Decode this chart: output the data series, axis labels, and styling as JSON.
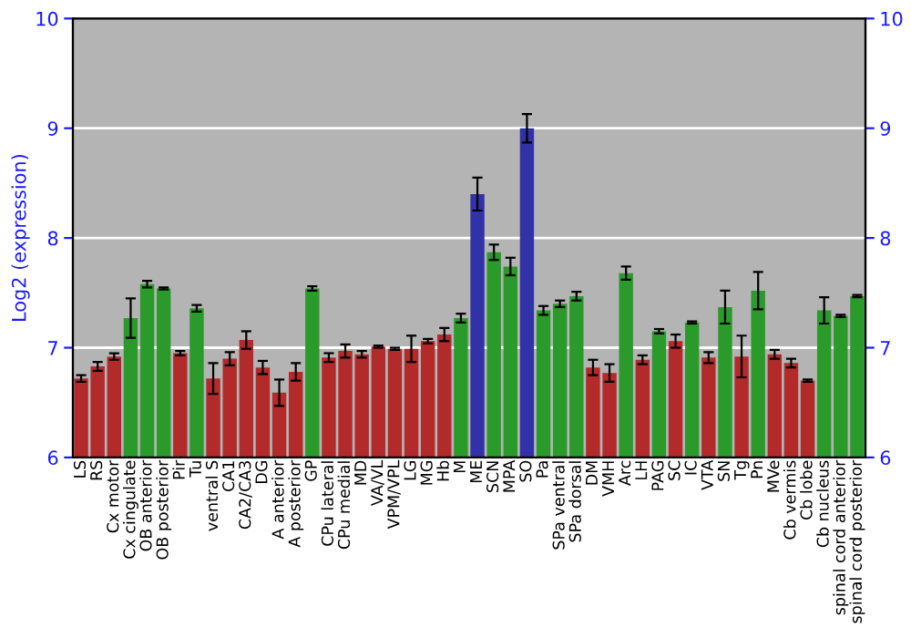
{
  "chart_data": {
    "type": "bar",
    "ylabel": "Log2 (expression)",
    "categories": [
      "LS",
      "RS",
      "Cx motor",
      "Cx cingulate",
      "OB anterior",
      "OB posterior",
      "Pir",
      "Tu",
      "ventral S",
      "CA1",
      "CA2/CA3",
      "DG",
      "A anterior",
      "A posterior",
      "GP",
      "CPu lateral",
      "CPu medial",
      "MD",
      "VA/VL",
      "VPM/VPL",
      "LG",
      "MG",
      "Hb",
      "M",
      "ME",
      "SCN",
      "MPA",
      "SO",
      "Pa",
      "SPa ventral",
      "SPa dorsal",
      "DM",
      "VMH",
      "Arc",
      "LH",
      "PAG",
      "SC",
      "IC",
      "VTA",
      "SN",
      "Tg",
      "Pn",
      "MVe",
      "Cb vermis",
      "Cb lobe",
      "Cb nucleus",
      "spinal cord anterior",
      "spinal cord posterior"
    ],
    "values": [
      6.72,
      6.83,
      6.92,
      7.27,
      7.58,
      7.54,
      6.95,
      7.36,
      6.72,
      6.9,
      7.07,
      6.82,
      6.59,
      6.78,
      7.54,
      6.91,
      6.97,
      6.94,
      7.01,
      6.99,
      6.99,
      7.06,
      7.12,
      7.27,
      8.4,
      7.87,
      7.74,
      9.0,
      7.34,
      7.4,
      7.47,
      6.82,
      6.77,
      7.68,
      6.89,
      7.15,
      7.06,
      7.23,
      6.91,
      7.37,
      6.92,
      7.52,
      6.94,
      6.86,
      6.7,
      7.34,
      7.29,
      7.47
    ],
    "errors": [
      0.03,
      0.04,
      0.03,
      0.18,
      0.03,
      0.01,
      0.02,
      0.03,
      0.14,
      0.06,
      0.08,
      0.06,
      0.12,
      0.08,
      0.02,
      0.04,
      0.06,
      0.03,
      0.01,
      0.01,
      0.12,
      0.02,
      0.06,
      0.04,
      0.15,
      0.07,
      0.08,
      0.13,
      0.04,
      0.03,
      0.04,
      0.07,
      0.08,
      0.06,
      0.04,
      0.02,
      0.06,
      0.01,
      0.05,
      0.15,
      0.19,
      0.17,
      0.04,
      0.04,
      0.01,
      0.12,
      0.01,
      0.01
    ],
    "colors": [
      "#b22a2a",
      "#b22a2a",
      "#b22a2a",
      "#2a9a2a",
      "#2a9a2a",
      "#2a9a2a",
      "#b22a2a",
      "#2a9a2a",
      "#b22a2a",
      "#b22a2a",
      "#b22a2a",
      "#b22a2a",
      "#b22a2a",
      "#b22a2a",
      "#2a9a2a",
      "#b22a2a",
      "#b22a2a",
      "#b22a2a",
      "#b22a2a",
      "#b22a2a",
      "#b22a2a",
      "#b22a2a",
      "#b22a2a",
      "#2a9a2a",
      "#3232a8",
      "#2a9a2a",
      "#2a9a2a",
      "#3232a8",
      "#2a9a2a",
      "#2a9a2a",
      "#2a9a2a",
      "#b22a2a",
      "#b22a2a",
      "#2a9a2a",
      "#b22a2a",
      "#2a9a2a",
      "#b22a2a",
      "#2a9a2a",
      "#b22a2a",
      "#2a9a2a",
      "#b22a2a",
      "#2a9a2a",
      "#b22a2a",
      "#b22a2a",
      "#b22a2a",
      "#2a9a2a",
      "#2a9a2a",
      "#2a9a2a"
    ],
    "ylim": [
      6,
      10
    ],
    "yticks": [
      6,
      7,
      8,
      9,
      10
    ],
    "y2lim": [
      6,
      10
    ],
    "y2ticks": [
      6,
      7,
      8,
      9,
      10
    ],
    "grid": "y"
  }
}
